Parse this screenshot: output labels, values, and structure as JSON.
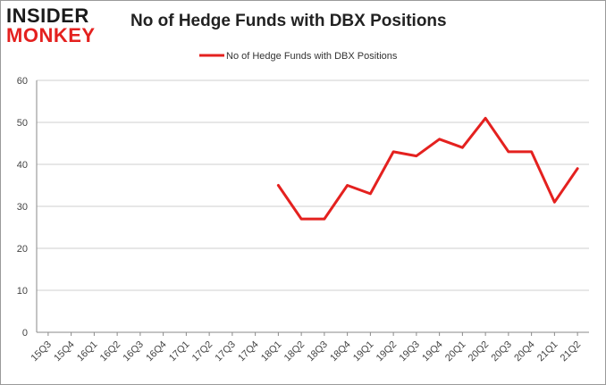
{
  "logo": {
    "line1": "INSIDER",
    "line2": "MONKEY"
  },
  "chart_data": {
    "type": "line",
    "title": "No of Hedge Funds with DBX Positions",
    "xlabel": "",
    "ylabel": "",
    "categories": [
      "15Q3",
      "15Q4",
      "16Q1",
      "16Q2",
      "16Q3",
      "16Q4",
      "17Q1",
      "17Q2",
      "17Q3",
      "17Q4",
      "18Q1",
      "18Q2",
      "18Q3",
      "18Q4",
      "19Q1",
      "19Q2",
      "19Q3",
      "19Q4",
      "20Q1",
      "20Q2",
      "20Q3",
      "20Q4",
      "21Q1",
      "21Q2"
    ],
    "series": [
      {
        "name": "No of Hedge Funds with DBX Positions",
        "color": "#e4211f",
        "values": [
          null,
          null,
          null,
          null,
          null,
          null,
          null,
          null,
          null,
          null,
          35,
          27,
          27,
          35,
          33,
          43,
          42,
          46,
          44,
          51,
          43,
          43,
          31,
          39
        ]
      }
    ],
    "ylim": [
      0,
      60
    ],
    "yticks": [
      0,
      10,
      20,
      30,
      40,
      50,
      60
    ],
    "grid": true,
    "legend": "top-center"
  }
}
